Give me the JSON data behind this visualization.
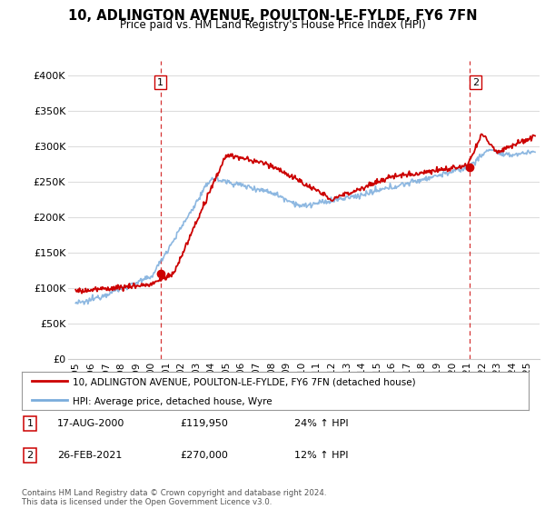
{
  "title": "10, ADLINGTON AVENUE, POULTON-LE-FYLDE, FY6 7FN",
  "subtitle": "Price paid vs. HM Land Registry's House Price Index (HPI)",
  "bg_color": "#ffffff",
  "grid_color": "#dddddd",
  "ylim": [
    0,
    420000
  ],
  "yticks": [
    0,
    50000,
    100000,
    150000,
    200000,
    250000,
    300000,
    350000,
    400000
  ],
  "ytick_labels": [
    "£0",
    "£50K",
    "£100K",
    "£150K",
    "£200K",
    "£250K",
    "£300K",
    "£350K",
    "£400K"
  ],
  "sale1_date": 2000.63,
  "sale1_price": 119950,
  "sale2_date": 2021.15,
  "sale2_price": 270000,
  "table_rows": [
    [
      "1",
      "17-AUG-2000",
      "£119,950",
      "24% ↑ HPI"
    ],
    [
      "2",
      "26-FEB-2021",
      "£270,000",
      "12% ↑ HPI"
    ]
  ],
  "legend_line1": "10, ADLINGTON AVENUE, POULTON-LE-FYLDE, FY6 7FN (detached house)",
  "legend_line2": "HPI: Average price, detached house, Wyre",
  "footnote": "Contains HM Land Registry data © Crown copyright and database right 2024.\nThis data is licensed under the Open Government Licence v3.0.",
  "red_line_color": "#cc0000",
  "blue_line_color": "#7aacdc",
  "vline_color": "#cc0000",
  "marker_color": "#cc0000",
  "xlim_left": 1994.5,
  "xlim_right": 2025.8
}
